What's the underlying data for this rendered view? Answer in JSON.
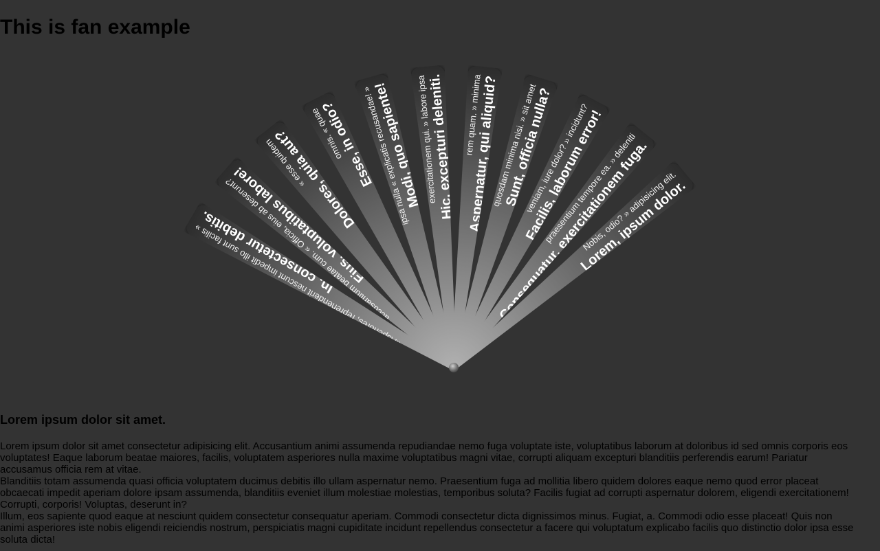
{
  "page_title": "This is fan example",
  "fan": {
    "blades": [
      {
        "heading": "In, consectetur debitis.",
        "quote": "«Asperiores, reprehenderit nescunt impedit illo sunt facilis »"
      },
      {
        "heading": "Eius, voluptatibus labore!",
        "quote": "accusantium beatae cum. « Officia, eius ab deserunt?"
      },
      {
        "heading": "Dolores, quia aut?",
        "quote": "« esse quidem"
      },
      {
        "heading": "Esse, in odio?",
        "quote": "omnis. « quae"
      },
      {
        "heading": "Modi, quo sapiente!",
        "quote": "ipsa nulla « explicatis recusandae! »"
      },
      {
        "heading": "Hic, excepturi deleniti.",
        "quote": "exercitationem qui. » labore ipsa"
      },
      {
        "heading": "Aspernatur, qui aliquid?",
        "quote": "rem quam. » minima"
      },
      {
        "heading": "Sunt, officia nulla?",
        "quote": "quosdam minima nisi. » sit amet"
      },
      {
        "heading": "Facilis, laborum error!",
        "quote": "veniam, iure dolor? » incidunt?"
      },
      {
        "heading": "Consequatur, exercitationem fuga.",
        "quote": "praesentium tempore ea. » deleniti"
      },
      {
        "heading": "Lorem, ipsum dolor.",
        "quote": "Nobis, odio? » adipisicing elit."
      }
    ]
  },
  "content": {
    "title": "Lorem ipsum dolor sit amet.",
    "paragraph1": "Lorem ipsum dolor sit amet consectetur adipisicing elit. Accusantium animi assumenda repudiandae nemo fuga voluptate iste, voluptatibus laborum at doloribus id sed omnis corporis eos voluptates! Eaque laborum beatae maiores, facilis, voluptatem asperiores nulla maxime voluptatibus magni vitae, corrupti aliquam excepturi blanditiis perferendis earum! Pariatur accusamus officia rem at vitae.",
    "paragraph2": "Blanditiis totam assumenda quasi officia voluptatem ducimus debitis illo ullam aspernatur nemo. Praesentium fuga ad mollitia libero quidem dolores eaque nemo quod error placeat obcaecati impedit aperiam dolore ipsam assumenda, blanditiis eveniet illum molestiae molestias, temporibus soluta? Facilis fugiat ad corrupti aspernatur dolorem, eligendi exercitationem! Corrupti, corporis! Voluptas, deserunt in?",
    "paragraph3": "Illum, eos sapiente quod eaque at nesciunt quidem consectetur consequatur aperiam. Commodi consectetur dicta dignissimos minus. Fugiat, a. Commodi odio esse placeat! Quis non animi asperiores iste nobis eligendi reiciendis nostrum, perspiciatis magni cupiditate incidunt repellendus consectetur a facere qui voluptatum explicabo facilis quo distinctio dolor ipsa esse soluta dicta!"
  }
}
